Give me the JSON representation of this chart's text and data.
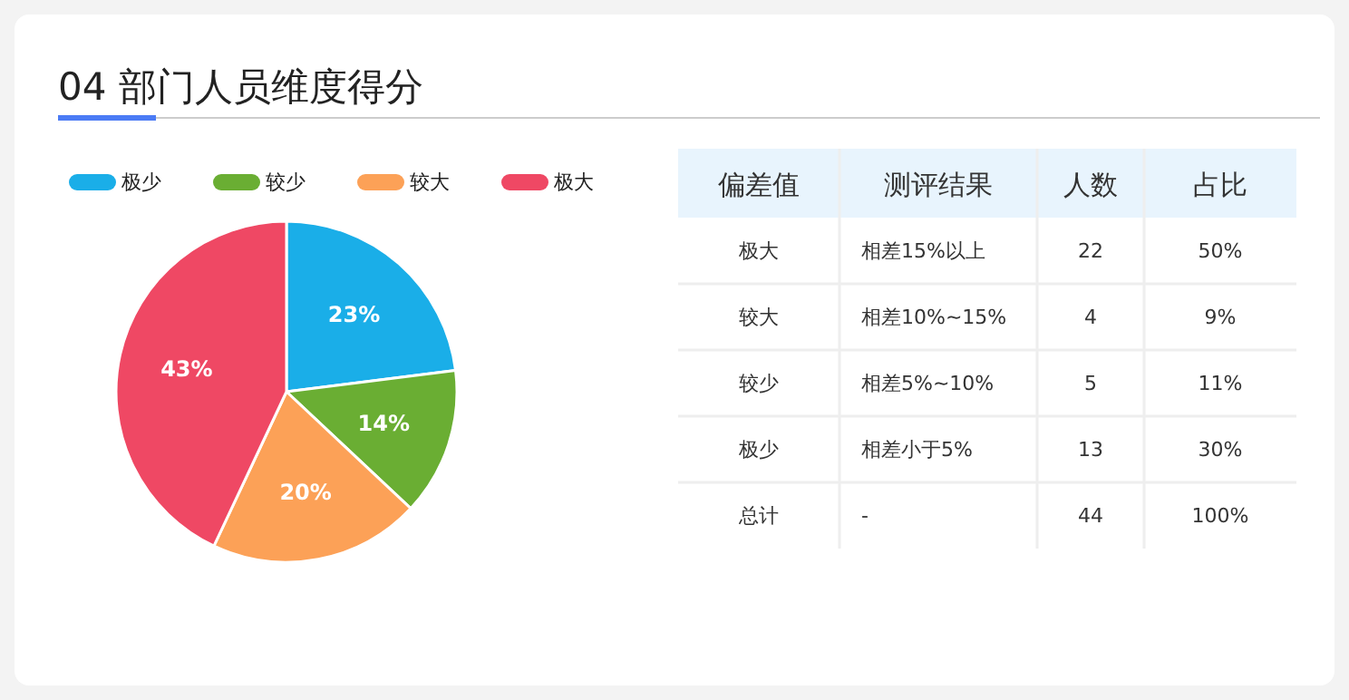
{
  "chart_data": [
    {
      "type": "pie",
      "title": "04 部门人员维度得分",
      "categories": [
        "极少",
        "较少",
        "较大",
        "极大"
      ],
      "values": [
        23,
        14,
        20,
        43
      ],
      "colors": [
        "#1aaee8",
        "#6aae33",
        "#fca157",
        "#ef4864"
      ],
      "legend": "top",
      "value_labels": [
        "23%",
        "14%",
        "20%",
        "43%"
      ]
    },
    {
      "type": "other",
      "categories": [
        "偏差值",
        "测评结果",
        "人数",
        "占比"
      ],
      "cell_labels": [
        [
          "极大",
          "相差15%以上",
          "22",
          "50%"
        ],
        [
          "较大",
          "相差10%~15%",
          "4",
          "9%"
        ],
        [
          "较少",
          "相差5%~10%",
          "5",
          "11%"
        ],
        [
          "极少",
          "相差小于5%",
          "13",
          "30%"
        ],
        [
          "总计",
          "-",
          "44",
          "100%"
        ]
      ]
    }
  ]
}
